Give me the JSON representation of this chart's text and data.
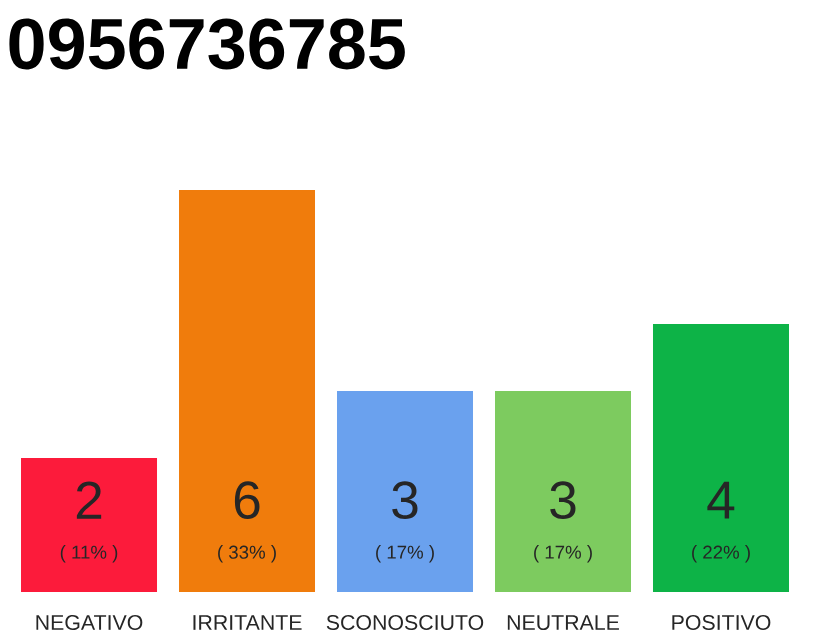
{
  "chart_data": {
    "type": "bar",
    "title": "0956736785",
    "categories": [
      "NEGATIVO",
      "IRRITANTE",
      "SCONOSCIUTO",
      "NEUTRALE",
      "POSITIVO"
    ],
    "values": [
      2,
      6,
      3,
      3,
      4
    ],
    "colors": [
      "#fc1b3b",
      "#f07c0c",
      "#6aa1ee",
      "#7dcb5f",
      "#0db347"
    ],
    "ylim": [
      0,
      6
    ],
    "data_labels": true,
    "annotations": [
      "( 11% )",
      "( 33% )",
      "( 17% )",
      "( 17% )",
      "( 22% )"
    ]
  }
}
